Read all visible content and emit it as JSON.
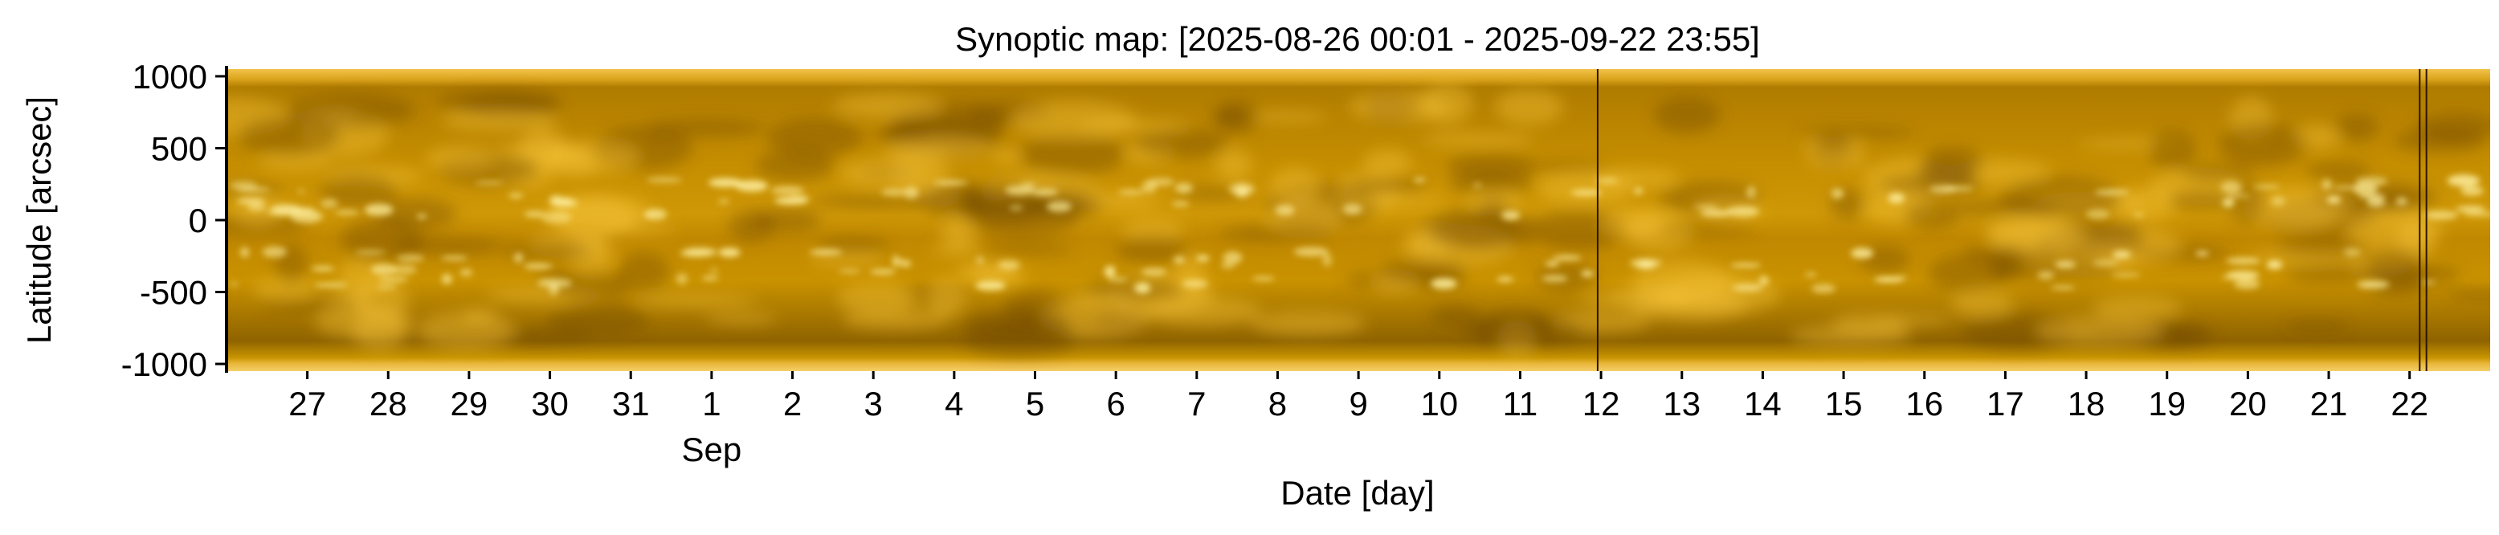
{
  "chart_data": {
    "type": "heatmap",
    "title": "Synoptic map: [2025-08-26 00:01 - 2025-09-22 23:55]",
    "xlabel": "Date [day]",
    "ylabel": "Latitude [arcsec]",
    "x_range": [
      "2025-08-26 00:01",
      "2025-09-22 23:55"
    ],
    "ylim": [
      -1050,
      1050
    ],
    "y_ticks": [
      1000,
      500,
      0,
      -500,
      -1000
    ],
    "y_tick_labels": [
      "1000",
      "500",
      "0",
      "-500",
      "-1000"
    ],
    "x_ticks": [
      "2025-08-27",
      "2025-08-28",
      "2025-08-29",
      "2025-08-30",
      "2025-08-31",
      "2025-09-01",
      "2025-09-02",
      "2025-09-03",
      "2025-09-04",
      "2025-09-05",
      "2025-09-06",
      "2025-09-07",
      "2025-09-08",
      "2025-09-09",
      "2025-09-10",
      "2025-09-11",
      "2025-09-12",
      "2025-09-13",
      "2025-09-14",
      "2025-09-15",
      "2025-09-16",
      "2025-09-17",
      "2025-09-18",
      "2025-09-19",
      "2025-09-20",
      "2025-09-21",
      "2025-09-22"
    ],
    "x_tick_labels": [
      "27",
      "28",
      "29",
      "30",
      "31",
      "1",
      "2",
      "3",
      "4",
      "5",
      "6",
      "7",
      "8",
      "9",
      "10",
      "11",
      "12",
      "13",
      "14",
      "15",
      "16",
      "17",
      "18",
      "19",
      "20",
      "21",
      "22"
    ],
    "x_secondary_label": "Sep",
    "colormap": [
      "#3a2000",
      "#8a5a00",
      "#c98e00",
      "#f0b400",
      "#ffd23c",
      "#fff2b0"
    ],
    "data_gaps": [
      "2025-09-11 23:00",
      "2025-09-22 03:00",
      "2025-09-22 05:00"
    ]
  }
}
